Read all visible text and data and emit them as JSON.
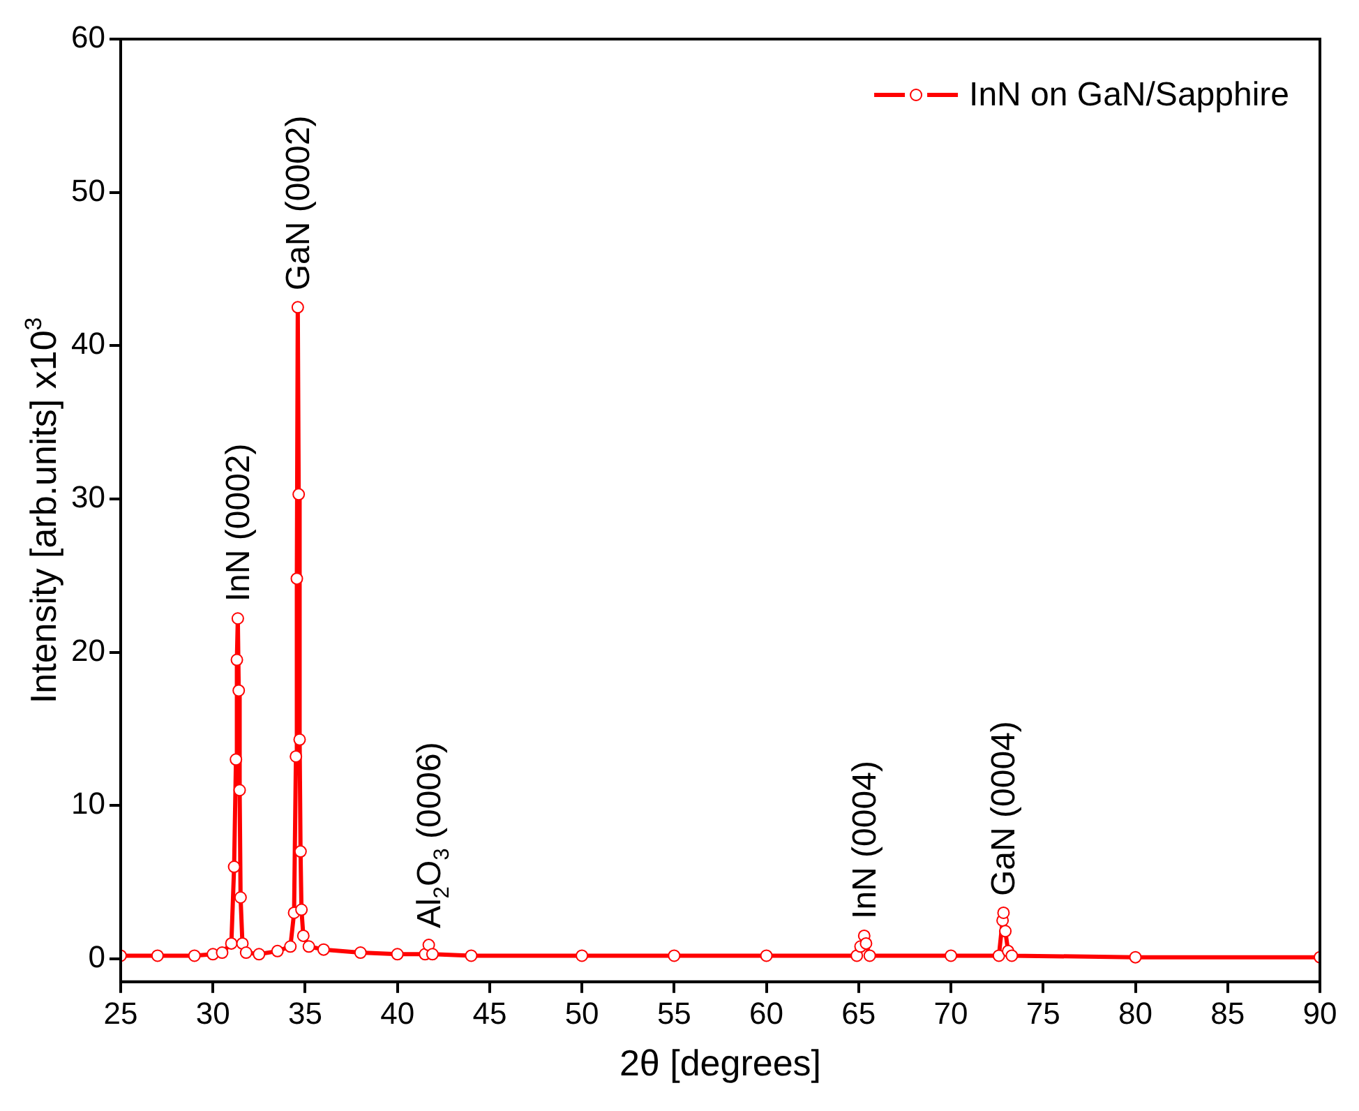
{
  "chart_data": {
    "type": "line",
    "xlabel": "2θ [degrees]",
    "ylabel": "Intensity [arb.units] x10$^{3}$",
    "x": [
      25,
      27,
      29,
      30,
      30.5,
      31.0,
      31.15,
      31.25,
      31.3,
      31.35,
      31.4,
      31.45,
      31.5,
      31.6,
      31.8,
      32.5,
      33.5,
      34.2,
      34.4,
      34.5,
      34.55,
      34.6,
      34.65,
      34.7,
      34.75,
      34.8,
      34.9,
      35.2,
      36,
      38,
      40,
      41.5,
      41.7,
      41.9,
      44,
      50,
      55,
      60,
      64.9,
      65.1,
      65.3,
      65.4,
      65.6,
      70,
      72.6,
      72.8,
      72.85,
      72.95,
      73.1,
      73.3,
      80,
      90
    ],
    "series": [
      {
        "name": "InN on GaN/Sapphire",
        "color": "#ff0000",
        "values": [
          0.2,
          0.2,
          0.2,
          0.3,
          0.4,
          1.0,
          6.0,
          13,
          19.5,
          22.2,
          17.5,
          11,
          4,
          1.0,
          0.4,
          0.3,
          0.5,
          0.8,
          3,
          13.2,
          24.8,
          42.5,
          30.3,
          14.3,
          7.0,
          3.2,
          1.5,
          0.8,
          0.6,
          0.4,
          0.3,
          0.3,
          0.9,
          0.3,
          0.2,
          0.2,
          0.2,
          0.2,
          0.2,
          0.8,
          1.5,
          1.0,
          0.2,
          0.2,
          0.2,
          2.5,
          3.0,
          1.8,
          0.5,
          0.2,
          0.1,
          0.1
        ]
      }
    ],
    "xlim": [
      25,
      90
    ],
    "xticks": [
      25,
      30,
      35,
      40,
      45,
      50,
      55,
      60,
      65,
      70,
      75,
      80,
      85,
      90
    ],
    "ylim": [
      -1.5,
      60
    ],
    "yticks": [
      0,
      10,
      20,
      30,
      40,
      50,
      60
    ],
    "grid": false,
    "legend": "top right",
    "marker": "circle",
    "line_style": "solid",
    "annotations": [
      {
        "text": "InN (0002)",
        "x": 31.35,
        "y": 22.2
      },
      {
        "text": "GaN (0002)",
        "x": 34.6,
        "y": 42.5
      },
      {
        "text": "Al$_{2}$O$_{3}$ (0006)",
        "x": 41.7,
        "y": 0.9
      },
      {
        "text": "InN (0004)",
        "x": 65.3,
        "y": 1.5
      },
      {
        "text": "GaN (0004)",
        "x": 72.85,
        "y": 3.0
      }
    ]
  }
}
